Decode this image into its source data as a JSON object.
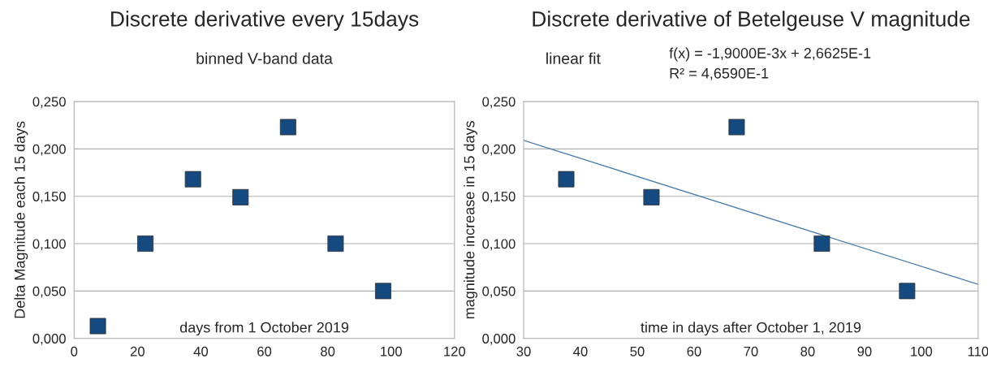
{
  "chart_data": [
    {
      "type": "scatter",
      "title": "Discrete derivative every 15days",
      "subtitle": "binned V-band data",
      "xlabel": "days from 1 October 2019",
      "ylabel": "Delta Magnitude each 15 days",
      "series": [
        {
          "color": "#154a80",
          "marker": "square",
          "x": [
            7.5,
            22.5,
            37.5,
            52.5,
            67.5,
            82.5,
            97.5
          ],
          "values": [
            0.013,
            0.1,
            0.168,
            0.149,
            0.223,
            0.1,
            0.05
          ]
        }
      ],
      "xlim": [
        0,
        120
      ],
      "xticks": [
        0,
        20,
        40,
        60,
        80,
        100,
        120
      ],
      "ylim": [
        0,
        0.25
      ],
      "yticks": [
        {
          "value": 0,
          "label": "0,000"
        },
        {
          "value": 0.05,
          "label": "0,050"
        },
        {
          "value": 0.1,
          "label": "0,100"
        },
        {
          "value": 0.15,
          "label": "0,150"
        },
        {
          "value": 0.2,
          "label": "0,200"
        },
        {
          "value": 0.25,
          "label": "0,250"
        }
      ],
      "grid": "y",
      "legend": false
    },
    {
      "type": "scatter",
      "title": "Discrete derivative of Betelgeuse V magnitude",
      "subtitle": "linear fit",
      "xlabel": "time in days after October 1, 2019",
      "ylabel": "magnitude increase in 15 days",
      "annotations": [
        "f(x) = -1,9000E-3x + 2,6625E-1",
        "R² = 4,6590E-1"
      ],
      "series": [
        {
          "color": "#154a80",
          "marker": "square",
          "x": [
            37.5,
            52.5,
            67.5,
            82.5,
            97.5
          ],
          "values": [
            0.168,
            0.149,
            0.223,
            0.1,
            0.05
          ]
        },
        {
          "type": "line",
          "color": "#4a7eb0",
          "marker": "none",
          "x": [
            30,
            110
          ],
          "values": [
            0.209,
            0.057
          ]
        }
      ],
      "xlim": [
        30,
        110
      ],
      "xticks": [
        30,
        40,
        50,
        60,
        70,
        80,
        90,
        100,
        110
      ],
      "ylim": [
        0,
        0.25
      ],
      "yticks": [
        {
          "value": 0,
          "label": "0,000"
        },
        {
          "value": 0.05,
          "label": "0,050"
        },
        {
          "value": 0.1,
          "label": "0,100"
        },
        {
          "value": 0.15,
          "label": "0,150"
        },
        {
          "value": 0.2,
          "label": "0,200"
        },
        {
          "value": 0.25,
          "label": "0,250"
        }
      ],
      "grid": "y",
      "legend": false
    }
  ]
}
